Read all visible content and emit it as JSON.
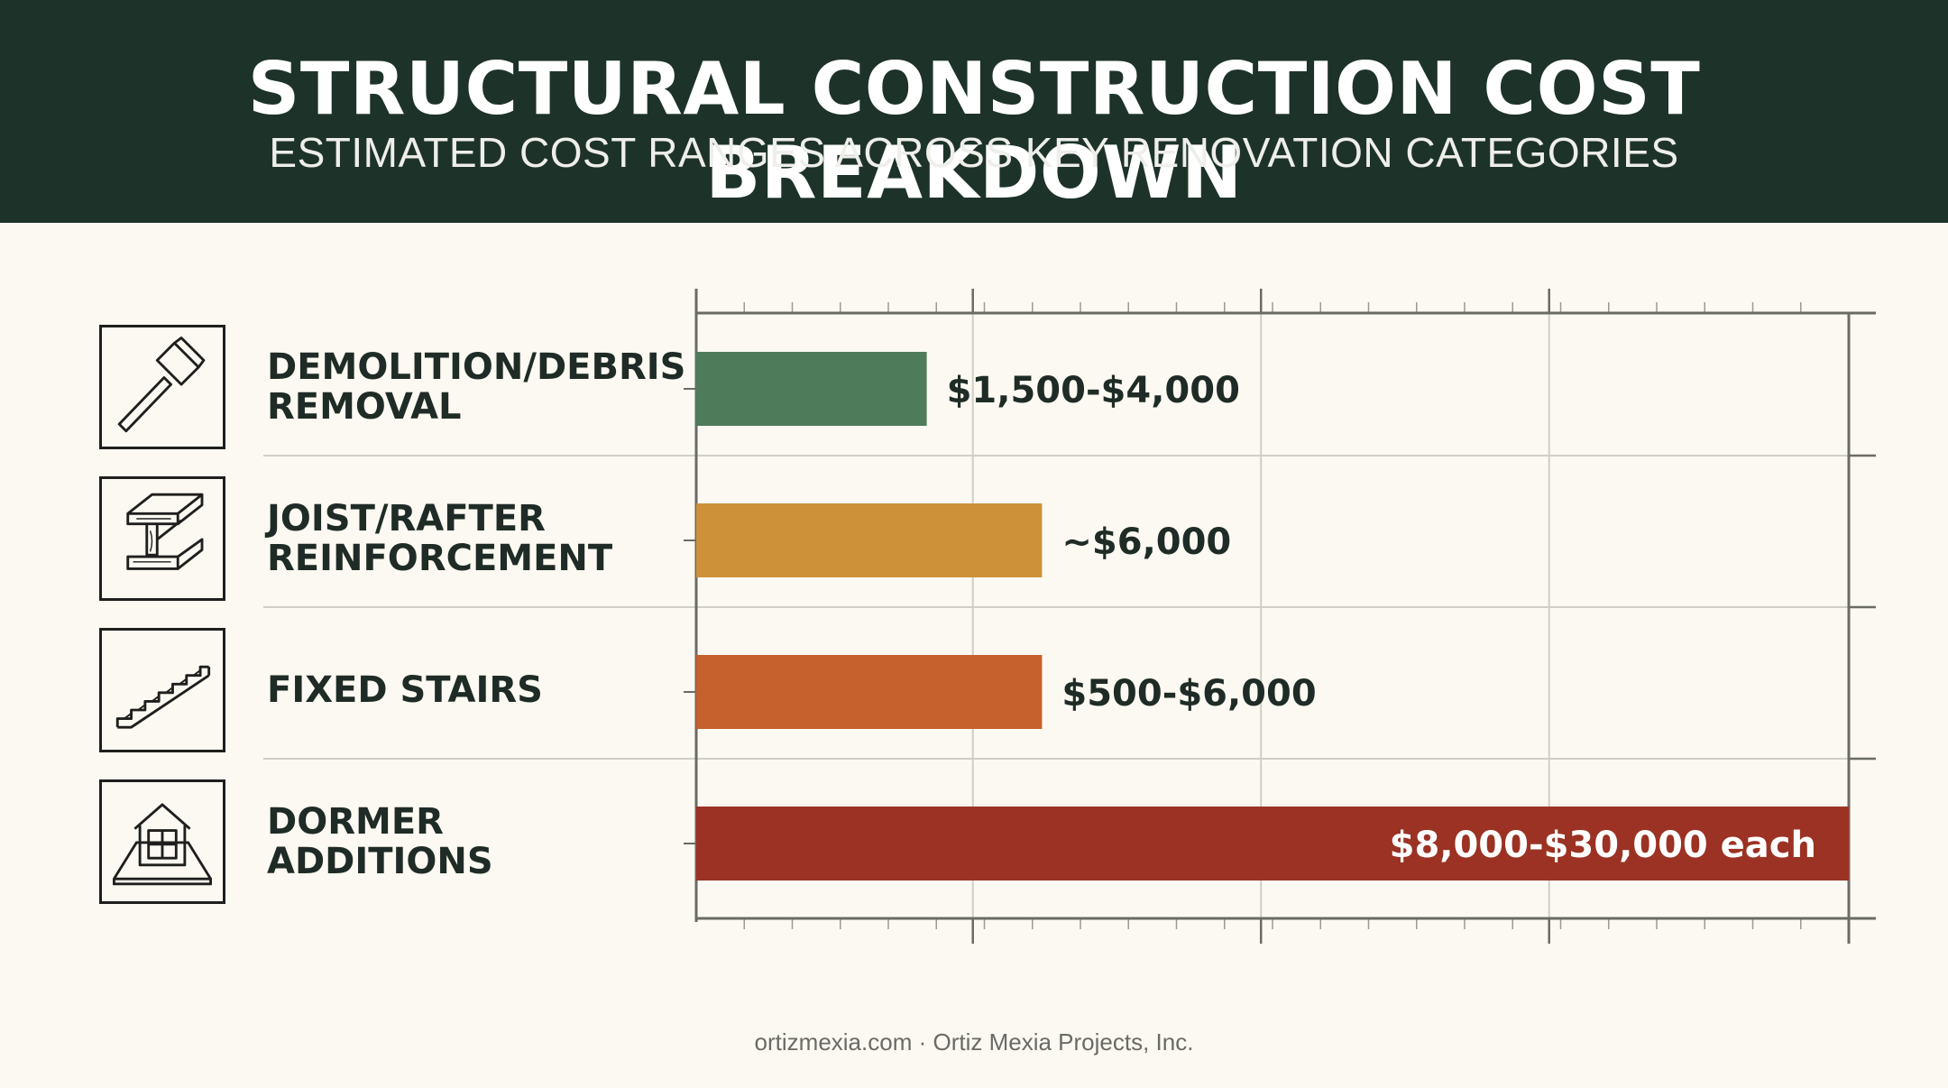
{
  "header": {
    "title": "STRUCTURAL CONSTRUCTION COST BREAKDOWN",
    "subtitle": "ESTIMATED COST RANGES ACROSS KEY RENOVATION CATEGORIES"
  },
  "categories": [
    {
      "line1": "DEMOLITION/DEBRIS",
      "line2": "REMOVAL",
      "icon": "hammer-icon"
    },
    {
      "line1": "JOIST/RAFTER",
      "line2": "REINFORCEMENT",
      "icon": "beam-icon"
    },
    {
      "line1": "FIXED STAIRS",
      "line2": "",
      "icon": "stairs-icon"
    },
    {
      "line1": "DORMER",
      "line2": "ADDITIONS",
      "icon": "dormer-icon"
    }
  ],
  "chart_data": {
    "type": "bar",
    "orientation": "horizontal",
    "categories": [
      "DEMOLITION/DEBRIS REMOVAL",
      "JOIST/RAFTER REINFORCEMENT",
      "FIXED STAIRS",
      "DORMER ADDITIONS"
    ],
    "values": [
      4000,
      6000,
      6000,
      20000
    ],
    "data_labels": [
      "$1,500-$4,000",
      "~$6,000",
      "$500-$6,000",
      "$8,000-$30,000 each"
    ],
    "colors": [
      "#4e7c5b",
      "#cd913a",
      "#c6602c",
      "#9b3223"
    ],
    "xlim": [
      0,
      20000
    ],
    "grid": true,
    "tick_labels_shown": false
  },
  "footer": {
    "text": "ortizmexia.com · Ortiz Mexia Projects, Inc."
  },
  "colors": {
    "header_bg": "#1d3329",
    "page_bg": "#fbf9f1",
    "text_dark": "#1f2b26"
  }
}
